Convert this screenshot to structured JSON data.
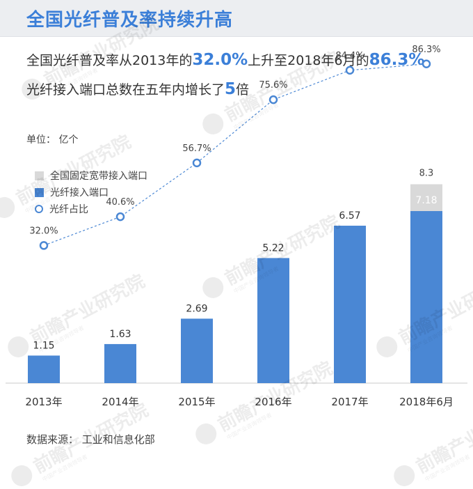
{
  "title": "全国光纤普及率持续升高",
  "summary": {
    "line1_prefix": "全国光纤普及率从2013年的",
    "line1_value_start": "32.0%",
    "line1_middle": "上升至2018年6月的",
    "line1_value_end": "86.3%",
    "line2_prefix": "光纤接入端口总数在五年内增长了",
    "line2_multiplier": "5",
    "line2_suffix": "倍"
  },
  "unit_label": "单位：  亿个",
  "source_label": "数据来源：  工业和信息化部",
  "watermark": {
    "brand": "前瞻产业研究院",
    "tagline": "中国产业咨询领导者"
  },
  "legend": {
    "total_ports": "全国固定宽带接入端口",
    "fiber_ports": "光纤接入端口",
    "fiber_share": "光纤占比"
  },
  "colors": {
    "accent": "#3b7fd8",
    "bar_fiber": "#4a87d4",
    "bar_total": "#d9d9d9",
    "line": "#4a87d4"
  },
  "chart_data": {
    "type": "bar",
    "categories": [
      "2013年",
      "2014年",
      "2015年",
      "2016年",
      "2017年",
      "2018年6月"
    ],
    "series": [
      {
        "name": "光纤接入端口",
        "type": "bar",
        "values": [
          1.15,
          1.63,
          2.69,
          5.22,
          6.57,
          7.18
        ]
      },
      {
        "name": "全国固定宽带接入端口",
        "type": "bar",
        "values": [
          null,
          null,
          null,
          null,
          null,
          8.3
        ]
      },
      {
        "name": "光纤占比",
        "type": "line",
        "values": [
          32.0,
          40.6,
          56.7,
          75.6,
          84.4,
          86.3
        ]
      }
    ],
    "bar_labels": [
      "1.15",
      "1.63",
      "2.69",
      "5.22",
      "6.57",
      "7.18"
    ],
    "total_labels": [
      "",
      "",
      "",
      "",
      "",
      "8.3"
    ],
    "line_labels": [
      "32.0%",
      "40.6%",
      "56.7%",
      "75.6%",
      "84.4%",
      "86.3%"
    ],
    "ylim_bars": [
      0,
      9.4
    ],
    "ylim_line": [
      0,
      100
    ],
    "grid": false,
    "legend_position": "top-left"
  }
}
